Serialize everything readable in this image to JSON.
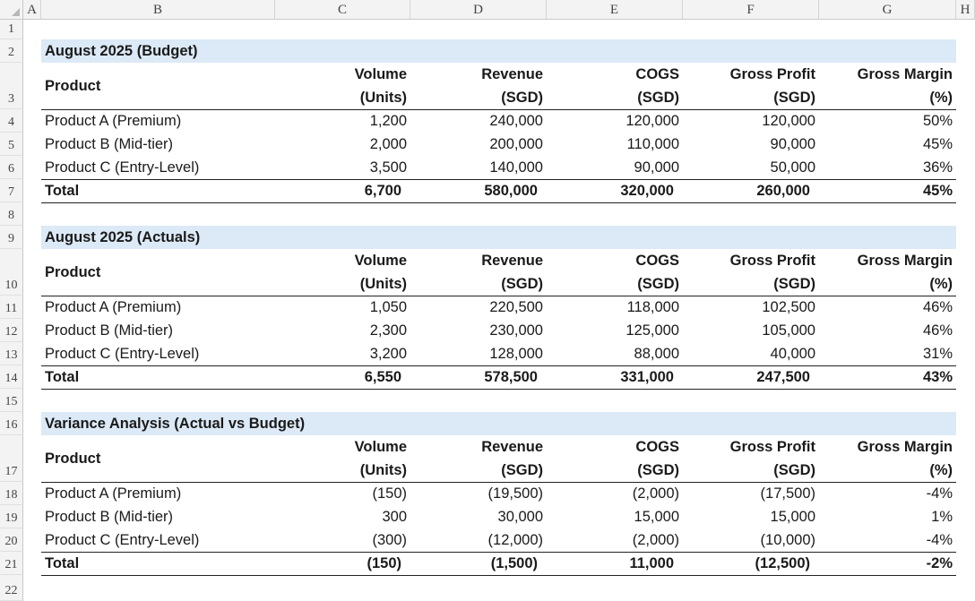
{
  "column_headers": [
    "A",
    "B",
    "C",
    "D",
    "E",
    "F",
    "G",
    "H"
  ],
  "row_numbers": [
    "1",
    "2",
    "3",
    "4",
    "5",
    "6",
    "7",
    "8",
    "9",
    "10",
    "11",
    "12",
    "13",
    "14",
    "15",
    "16",
    "17",
    "18",
    "19",
    "20",
    "21",
    "22"
  ],
  "header_labels": {
    "product": "Product",
    "volume_1": "Volume",
    "volume_2": "(Units)",
    "revenue_1": "Revenue",
    "revenue_2": "(SGD)",
    "cogs_1": "COGS",
    "cogs_2": "(SGD)",
    "gp_1": "Gross Profit",
    "gp_2": "(SGD)",
    "gm_1": "Gross Margin",
    "gm_2": "(%)"
  },
  "sections": [
    {
      "title": "August 2025 (Budget)",
      "rows": [
        {
          "product": "Product A (Premium)",
          "volume": "1,200",
          "revenue": "240,000",
          "cogs": "120,000",
          "gross_profit": "120,000",
          "gross_margin": "50%"
        },
        {
          "product": "Product B (Mid-tier)",
          "volume": "2,000",
          "revenue": "200,000",
          "cogs": "110,000",
          "gross_profit": "90,000",
          "gross_margin": "45%"
        },
        {
          "product": "Product C (Entry-Level)",
          "volume": "3,500",
          "revenue": "140,000",
          "cogs": "90,000",
          "gross_profit": "50,000",
          "gross_margin": "36%"
        }
      ],
      "total": {
        "product": "Total",
        "volume": "6,700",
        "revenue": "580,000",
        "cogs": "320,000",
        "gross_profit": "260,000",
        "gross_margin": "45%"
      }
    },
    {
      "title": "August 2025 (Actuals)",
      "rows": [
        {
          "product": "Product A (Premium)",
          "volume": "1,050",
          "revenue": "220,500",
          "cogs": "118,000",
          "gross_profit": "102,500",
          "gross_margin": "46%"
        },
        {
          "product": "Product B (Mid-tier)",
          "volume": "2,300",
          "revenue": "230,000",
          "cogs": "125,000",
          "gross_profit": "105,000",
          "gross_margin": "46%"
        },
        {
          "product": "Product C (Entry-Level)",
          "volume": "3,200",
          "revenue": "128,000",
          "cogs": "88,000",
          "gross_profit": "40,000",
          "gross_margin": "31%"
        }
      ],
      "total": {
        "product": "Total",
        "volume": "6,550",
        "revenue": "578,500",
        "cogs": "331,000",
        "gross_profit": "247,500",
        "gross_margin": "43%"
      }
    },
    {
      "title": "Variance Analysis (Actual vs Budget)",
      "rows": [
        {
          "product": "Product A (Premium)",
          "volume": "(150)",
          "revenue": "(19,500)",
          "cogs": "(2,000)",
          "gross_profit": "(17,500)",
          "gross_margin": "-4%"
        },
        {
          "product": "Product B (Mid-tier)",
          "volume": "300",
          "revenue": "30,000",
          "cogs": "15,000",
          "gross_profit": "15,000",
          "gross_margin": "1%"
        },
        {
          "product": "Product C (Entry-Level)",
          "volume": "(300)",
          "revenue": "(12,000)",
          "cogs": "(2,000)",
          "gross_profit": "(10,000)",
          "gross_margin": "-4%"
        }
      ],
      "total": {
        "product": "Total",
        "volume": "(150)",
        "revenue": "(1,500)",
        "cogs": "11,000",
        "gross_profit": "(12,500)",
        "gross_margin": "-2%"
      }
    }
  ]
}
